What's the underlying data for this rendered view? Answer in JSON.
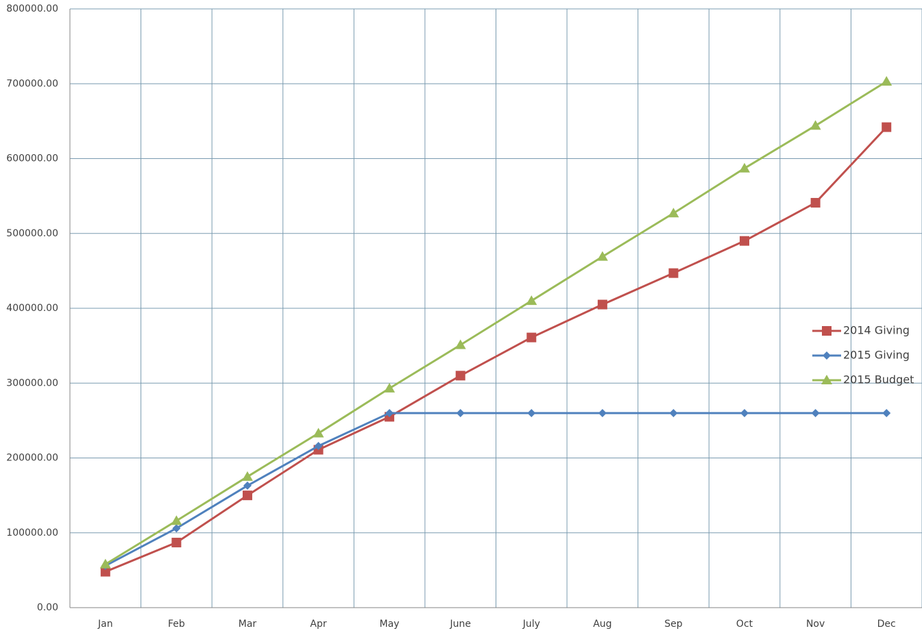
{
  "chart_data": {
    "type": "line",
    "categories": [
      "Jan",
      "Feb",
      "Mar",
      "Apr",
      "May",
      "June",
      "July",
      "Aug",
      "Sep",
      "Oct",
      "Nov",
      "Dec"
    ],
    "series": [
      {
        "name": "2014 Giving",
        "color": "#c0504d",
        "marker": "square",
        "values": [
          48000,
          87000,
          150000,
          211000,
          255000,
          310000,
          361000,
          405000,
          447000,
          490000,
          541000,
          642000
        ]
      },
      {
        "name": "2015 Giving",
        "color": "#4f81bd",
        "marker": "diamond",
        "values": [
          56000,
          106000,
          163000,
          216000,
          260000,
          260000,
          260000,
          260000,
          260000,
          260000,
          260000,
          260000
        ]
      },
      {
        "name": "2015 Budget",
        "color": "#9bbb59",
        "marker": "triangle",
        "values": [
          58000,
          116000,
          175000,
          233000,
          293000,
          351000,
          410000,
          469000,
          527000,
          587000,
          644000,
          703000
        ]
      }
    ],
    "ylim": [
      0,
      800000
    ],
    "yticks": [
      {
        "value": 0,
        "label": "0.00"
      },
      {
        "value": 100000,
        "label": "100000.00"
      },
      {
        "value": 200000,
        "label": "200000.00"
      },
      {
        "value": 300000,
        "label": "300000.00"
      },
      {
        "value": 400000,
        "label": "400000.00"
      },
      {
        "value": 500000,
        "label": "500000.00"
      },
      {
        "value": 600000,
        "label": "600000.00"
      },
      {
        "value": 700000,
        "label": "700000.00"
      },
      {
        "value": 800000,
        "label": "800000.00"
      }
    ],
    "grid": true,
    "legend": "right"
  }
}
